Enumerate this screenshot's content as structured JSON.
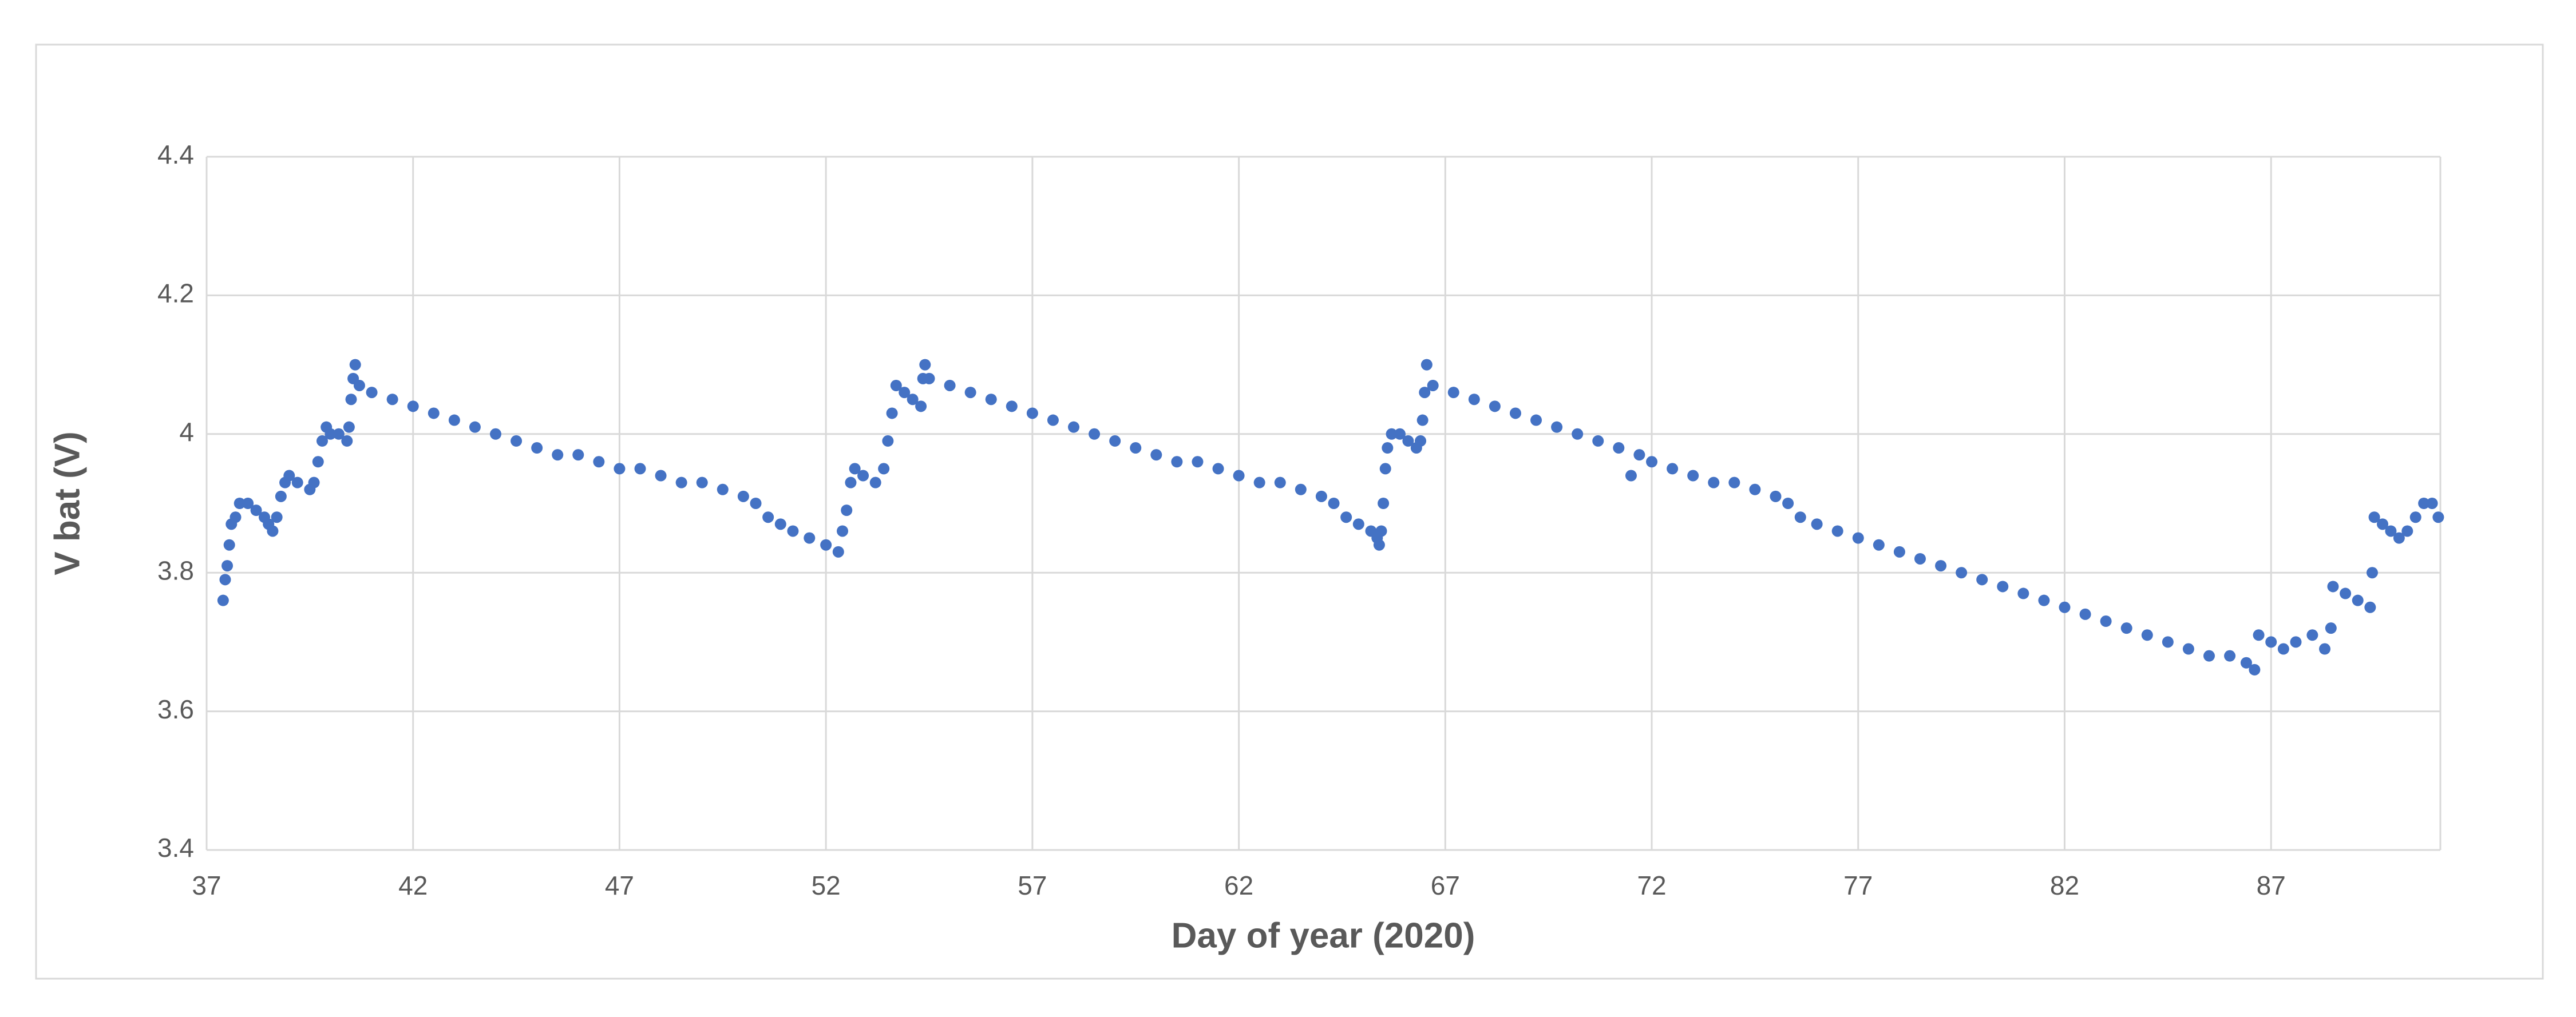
{
  "chart_data": {
    "type": "scatter",
    "x_label": "Day of year (2020)",
    "y_label": "V bat (V)",
    "color": "#4472c4",
    "grid": true,
    "xlim": [
      37,
      91.1
    ],
    "ylim": [
      3.4,
      4.4
    ],
    "xticks": [
      37,
      42,
      47,
      52,
      57,
      62,
      67,
      72,
      77,
      82,
      87
    ],
    "yticks": [
      3.4,
      3.6,
      3.8,
      4,
      4.2,
      4.4
    ],
    "x": [
      37.4,
      37.45,
      37.5,
      37.55,
      37.6,
      37.7,
      37.8,
      38.0,
      38.2,
      38.4,
      38.5,
      38.6,
      38.7,
      38.8,
      38.9,
      39.0,
      39.2,
      39.5,
      39.6,
      39.7,
      39.8,
      39.9,
      40.0,
      40.2,
      40.4,
      40.45,
      40.5,
      40.55,
      40.6,
      40.7,
      41.0,
      41.5,
      42.0,
      42.5,
      43.0,
      43.5,
      44.0,
      44.5,
      45.0,
      45.5,
      46.0,
      46.5,
      47.0,
      47.5,
      48.0,
      48.5,
      49.0,
      49.5,
      50.0,
      50.3,
      50.6,
      50.9,
      51.2,
      51.6,
      52.0,
      52.3,
      52.4,
      52.5,
      52.6,
      52.7,
      52.9,
      53.2,
      53.4,
      53.5,
      53.6,
      53.7,
      53.9,
      54.1,
      54.3,
      54.35,
      54.4,
      54.5,
      55.0,
      55.5,
      56.0,
      56.5,
      57.0,
      57.5,
      58.0,
      58.5,
      59.0,
      59.5,
      60.0,
      60.5,
      61.0,
      61.5,
      62.0,
      62.5,
      63.0,
      63.5,
      64.0,
      64.3,
      64.6,
      64.9,
      65.2,
      65.35,
      65.4,
      65.45,
      65.5,
      65.55,
      65.6,
      65.7,
      65.9,
      66.1,
      66.3,
      66.4,
      66.45,
      66.5,
      66.55,
      66.7,
      67.2,
      67.7,
      68.2,
      68.7,
      69.2,
      69.7,
      70.2,
      70.7,
      71.2,
      71.5,
      71.7,
      72.0,
      72.5,
      73.0,
      73.5,
      74.0,
      74.5,
      75.0,
      75.3,
      75.6,
      76.0,
      76.5,
      77.0,
      77.5,
      78.0,
      78.5,
      79.0,
      79.5,
      80.0,
      80.5,
      81.0,
      81.5,
      82.0,
      82.5,
      83.0,
      83.5,
      84.0,
      84.5,
      85.0,
      85.5,
      86.0,
      86.4,
      86.6,
      86.7,
      87.0,
      87.3,
      87.6,
      88.0,
      88.3,
      88.45,
      88.5,
      88.8,
      89.1,
      89.4,
      89.45,
      89.5,
      89.7,
      89.9,
      90.1,
      90.3,
      90.5,
      90.7,
      90.9,
      91.05
    ],
    "values": [
      3.76,
      3.79,
      3.81,
      3.84,
      3.87,
      3.88,
      3.9,
      3.9,
      3.89,
      3.88,
      3.87,
      3.86,
      3.88,
      3.91,
      3.93,
      3.94,
      3.93,
      3.92,
      3.93,
      3.96,
      3.99,
      4.01,
      4.0,
      4.0,
      3.99,
      4.01,
      4.05,
      4.08,
      4.1,
      4.07,
      4.06,
      4.05,
      4.04,
      4.03,
      4.02,
      4.01,
      4.0,
      3.99,
      3.98,
      3.97,
      3.97,
      3.96,
      3.95,
      3.95,
      3.94,
      3.93,
      3.93,
      3.92,
      3.91,
      3.9,
      3.88,
      3.87,
      3.86,
      3.85,
      3.84,
      3.83,
      3.86,
      3.89,
      3.93,
      3.95,
      3.94,
      3.93,
      3.95,
      3.99,
      4.03,
      4.07,
      4.06,
      4.05,
      4.04,
      4.08,
      4.1,
      4.08,
      4.07,
      4.06,
      4.05,
      4.04,
      4.03,
      4.02,
      4.01,
      4.0,
      3.99,
      3.98,
      3.97,
      3.96,
      3.96,
      3.95,
      3.94,
      3.93,
      3.93,
      3.92,
      3.91,
      3.9,
      3.88,
      3.87,
      3.86,
      3.85,
      3.84,
      3.86,
      3.9,
      3.95,
      3.98,
      4.0,
      4.0,
      3.99,
      3.98,
      3.99,
      4.02,
      4.06,
      4.1,
      4.07,
      4.06,
      4.05,
      4.04,
      4.03,
      4.02,
      4.01,
      4.0,
      3.99,
      3.98,
      3.94,
      3.97,
      3.96,
      3.95,
      3.94,
      3.93,
      3.93,
      3.92,
      3.91,
      3.9,
      3.88,
      3.87,
      3.86,
      3.85,
      3.84,
      3.83,
      3.82,
      3.81,
      3.8,
      3.79,
      3.78,
      3.77,
      3.76,
      3.75,
      3.74,
      3.73,
      3.72,
      3.71,
      3.7,
      3.69,
      3.68,
      3.68,
      3.67,
      3.66,
      3.71,
      3.7,
      3.69,
      3.7,
      3.71,
      3.69,
      3.72,
      3.78,
      3.77,
      3.76,
      3.75,
      3.8,
      3.88,
      3.87,
      3.86,
      3.85,
      3.86,
      3.88,
      3.9,
      3.9,
      3.88
    ]
  }
}
